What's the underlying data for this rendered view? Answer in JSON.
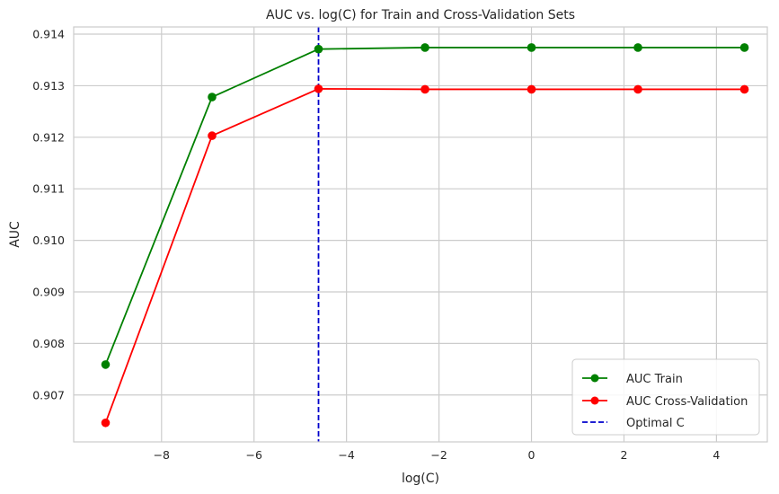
{
  "chart_data": {
    "type": "line",
    "title": "AUC vs. log(C) for Train and Cross-Validation Sets",
    "xlabel": "log(C)",
    "ylabel": "AUC",
    "xlim": [
      -9.9,
      5.1
    ],
    "ylim": [
      0.90609,
      0.91414
    ],
    "xticks": [
      -8,
      -6,
      -4,
      -2,
      0,
      2,
      4
    ],
    "xtick_labels": [
      "−8",
      "−6",
      "−4",
      "−2",
      "0",
      "2",
      "4"
    ],
    "yticks": [
      0.907,
      0.908,
      0.909,
      0.91,
      0.911,
      0.912,
      0.913,
      0.914
    ],
    "ytick_labels": [
      "0.907",
      "0.908",
      "0.909",
      "0.910",
      "0.911",
      "0.912",
      "0.913",
      "0.914"
    ],
    "grid": true,
    "legend_position": "bottom-right",
    "x": [
      -9.2103,
      -6.9078,
      -4.6052,
      -2.3026,
      0.0,
      2.3026,
      4.6052
    ],
    "series": [
      {
        "name": "AUC Train",
        "color": "#008000",
        "marker": "circle",
        "values": [
          0.90759,
          0.91278,
          0.91371,
          0.91374,
          0.91374,
          0.91374,
          0.91374
        ]
      },
      {
        "name": "AUC Cross-Validation",
        "color": "#ff0000",
        "marker": "circle",
        "values": [
          0.90646,
          0.91203,
          0.91294,
          0.91293,
          0.91293,
          0.91293,
          0.91293
        ]
      }
    ],
    "vline": {
      "name": "Optimal C",
      "x": -4.6052,
      "color": "#0000cc",
      "style": "dashed"
    }
  }
}
